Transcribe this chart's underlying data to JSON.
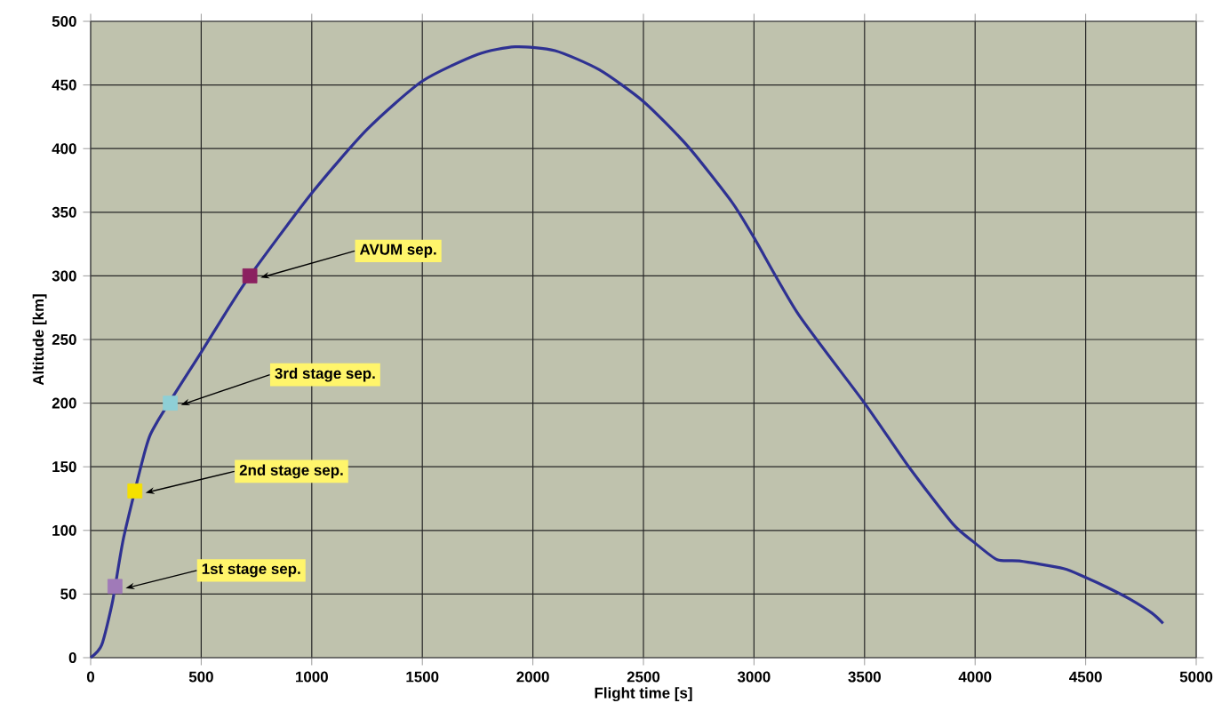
{
  "chart_data": {
    "type": "line",
    "xlabel": "Flight time [s]",
    "ylabel": "Altitude [km]",
    "xlim": [
      0,
      5000
    ],
    "ylim": [
      0,
      500
    ],
    "xticks": [
      0,
      500,
      1000,
      1500,
      2000,
      2500,
      3000,
      3500,
      4000,
      4500,
      5000
    ],
    "yticks": [
      0,
      50,
      100,
      150,
      200,
      250,
      300,
      350,
      400,
      450,
      500
    ],
    "grid": true,
    "series": [
      {
        "color": "#2e3192",
        "marker": "none",
        "x": [
          0,
          50,
          100,
          150,
          250,
          300,
          500,
          700,
          1000,
          1250,
          1500,
          1750,
          1920,
          2100,
          2300,
          2500,
          2700,
          2900,
          3000,
          3200,
          3500,
          3700,
          3900,
          4000,
          4100,
          4200,
          4400,
          4500,
          4600,
          4700,
          4800,
          4850
        ],
        "values": [
          0,
          10,
          45,
          95,
          165,
          185,
          240,
          295,
          365,
          415,
          453,
          474,
          480,
          477,
          462,
          437,
          402,
          358,
          330,
          270,
          200,
          150,
          105,
          90,
          77,
          76,
          70,
          63,
          55,
          46,
          35,
          27
        ]
      },
      {
        "type": "scatter",
        "marker": "square",
        "colors": [
          "#a07ab8",
          "#f5e000",
          "#8ecfd6",
          "#8b2060"
        ],
        "x": [
          110,
          200,
          360,
          720
        ],
        "values": [
          56,
          131,
          200,
          300
        ]
      }
    ],
    "annotations": [
      {
        "text": "1st stage sep.",
        "x": 110,
        "y": 56
      },
      {
        "text": "2nd stage sep.",
        "x": 200,
        "y": 131
      },
      {
        "text": "3rd stage sep.",
        "x": 360,
        "y": 200
      },
      {
        "text": "AVUM sep.",
        "x": 720,
        "y": 300
      }
    ]
  }
}
